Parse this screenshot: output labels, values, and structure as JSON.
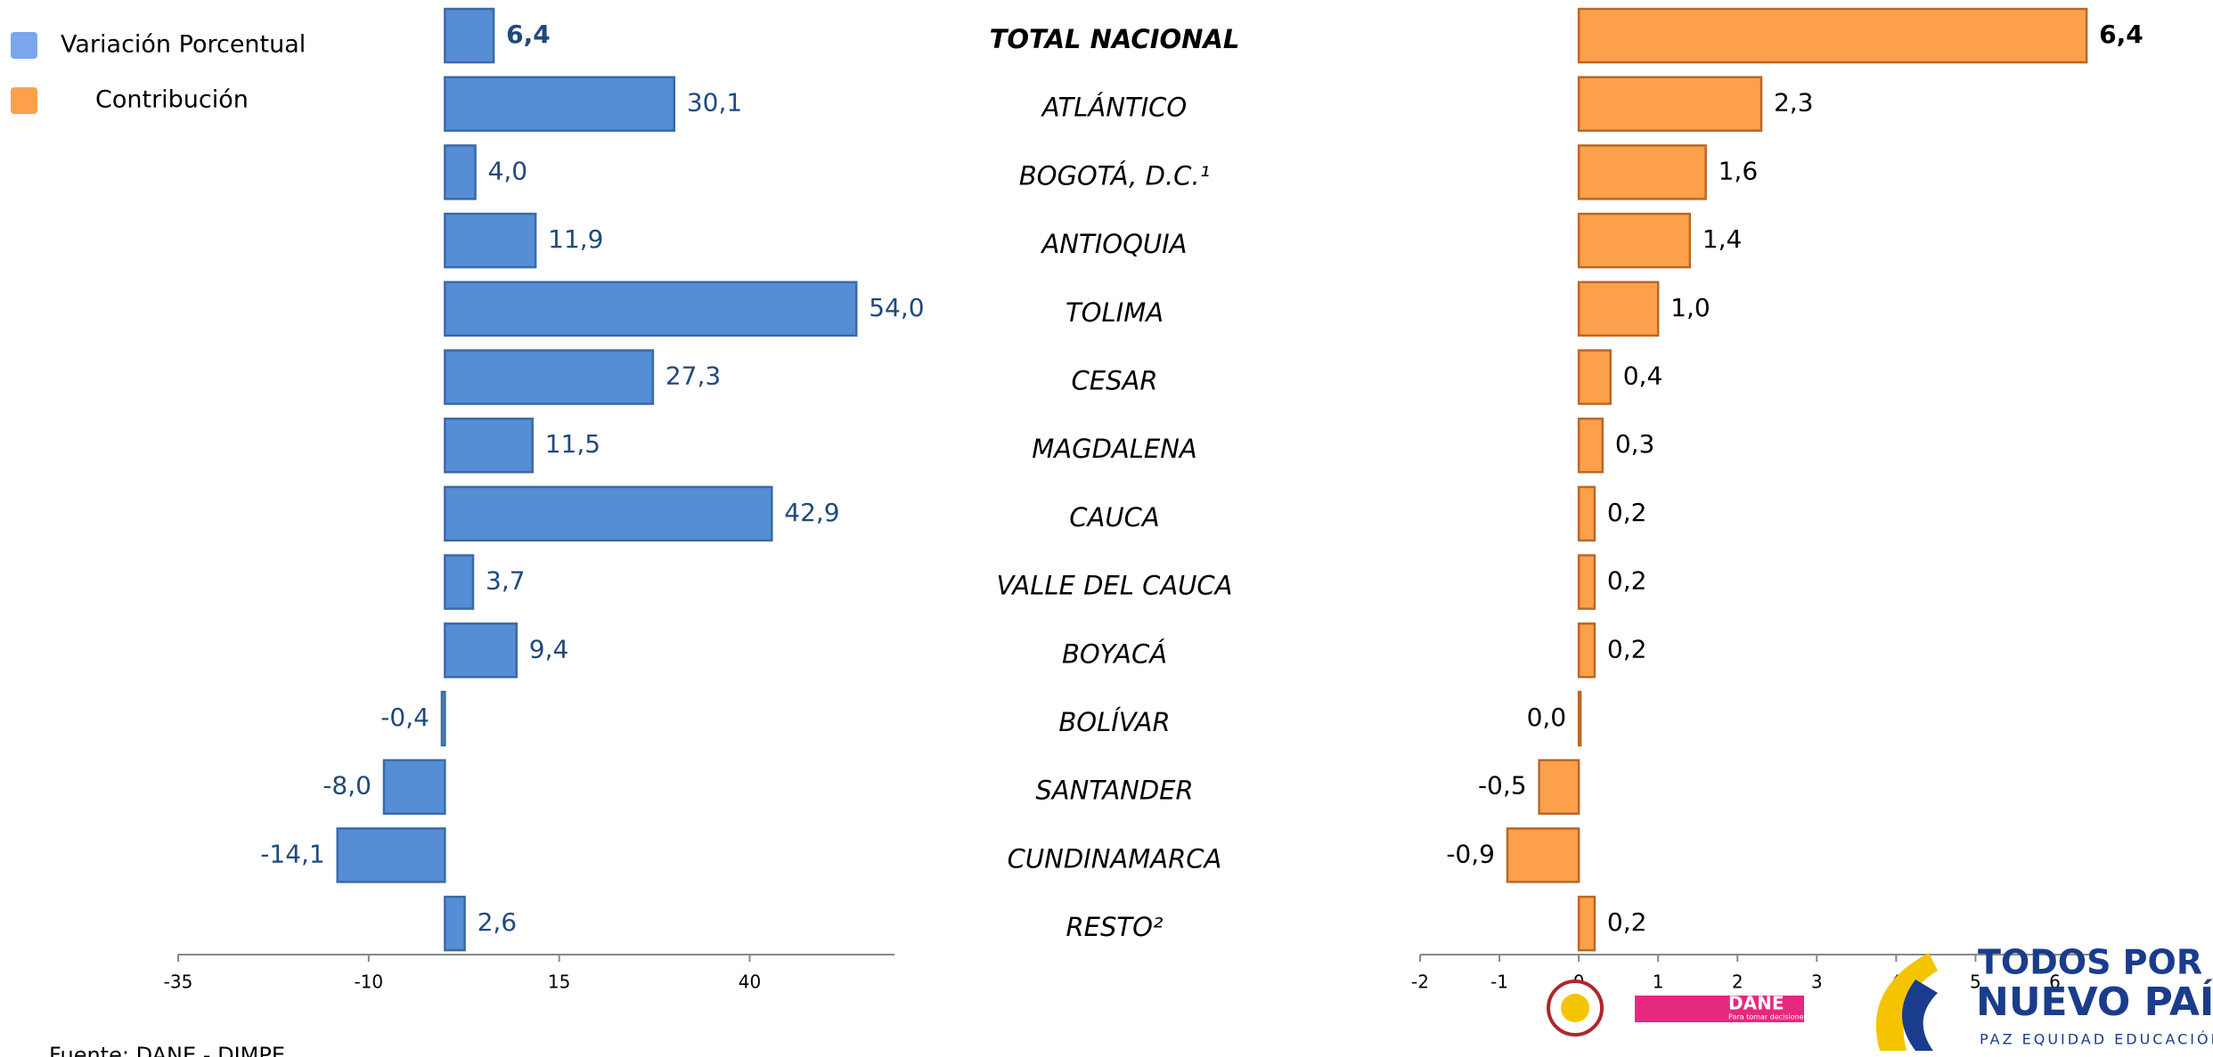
{
  "chart_data": [
    {
      "type": "bar",
      "orientation": "horizontal",
      "name": "Variación Porcentual",
      "color": "#558ed5",
      "border": "#3b6aa6",
      "label_color": "#1f497d",
      "categories": [
        "TOTAL NACIONAL",
        "ATLÁNTICO",
        "BOGOTÁ, D.C.¹",
        "ANTIOQUIA",
        "TOLIMA",
        "CESAR",
        "MAGDALENA",
        "CAUCA",
        "VALLE DEL CAUCA",
        "BOYACÁ",
        "BOLÍVAR",
        "SANTANDER",
        "CUNDINAMARCA",
        "RESTO²"
      ],
      "values": [
        6.4,
        30.1,
        4.0,
        11.9,
        54.0,
        27.3,
        11.5,
        42.9,
        3.7,
        9.4,
        -0.4,
        -8.0,
        -14.1,
        2.6
      ],
      "value_labels": [
        "6,4",
        "30,1",
        "4,0",
        "11,9",
        "54,0",
        "27,3",
        "11,5",
        "42,9",
        "3,7",
        "9,4",
        "-0,4",
        "-8,0",
        "-14,1",
        "2,6"
      ],
      "xlim": [
        -35,
        59
      ],
      "xticks": [
        -35,
        -10,
        15,
        40
      ]
    },
    {
      "type": "bar",
      "orientation": "horizontal",
      "name": "Contribución",
      "color": "#fda04c",
      "border": "#b8682a",
      "label_color": "#000000",
      "values": [
        6.4,
        2.3,
        1.6,
        1.4,
        1.0,
        0.4,
        0.3,
        0.2,
        0.2,
        0.2,
        0.0,
        -0.5,
        -0.9,
        0.2
      ],
      "value_labels": [
        "6,4",
        "2,3",
        "1,6",
        "1,4",
        "1,0",
        "0,4",
        "0,3",
        "0,2",
        "0,2",
        "0,2",
        "0,0",
        "-0,5",
        "-0,9",
        "0,2"
      ],
      "xlim": [
        -2,
        6.5
      ],
      "xticks": [
        -2,
        -1,
        0,
        1,
        2,
        3,
        4,
        5,
        6
      ]
    }
  ],
  "source": "Fuente: DANE - DIMPE",
  "logos": {
    "dane": "DANE",
    "dane_tagline": "Para tomar decisiones",
    "slogan_1": "TODOS POR UN",
    "slogan_2": "NUEVO PAÍS",
    "slogan_3": "PAZ  EQUIDAD  EDUCACIÓN"
  }
}
